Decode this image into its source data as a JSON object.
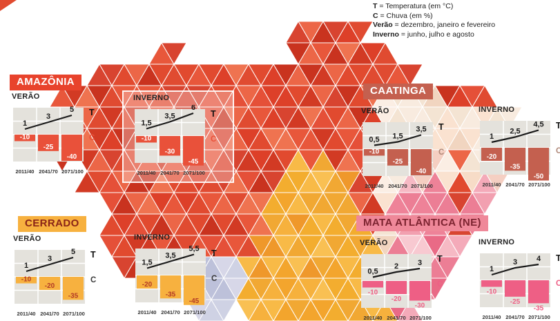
{
  "legend": {
    "items": [
      {
        "key": "T",
        "rest": " = Temperatura (em °C)"
      },
      {
        "key": "C",
        "rest": " = Chuva (em %)"
      },
      {
        "key": "Verão",
        "rest": " = dezembro, janeiro e fevereiro"
      },
      {
        "key": "Inverno",
        "rest": " = junho, julho e agosto"
      }
    ]
  },
  "x_labels": [
    "2011/40",
    "2041/70",
    "2071/100"
  ],
  "axis": {
    "t_label": "T",
    "c_label": "C"
  },
  "regions": [
    {
      "id": "amazonia",
      "label": "AMAZÔNIA",
      "label_bg": "#e8432c",
      "label_color": "#ffffff",
      "bar_color": "#e9513a",
      "bar_label_color": "#ffffff",
      "bar_label_placement": "inside",
      "c_color": "#e9513a",
      "charts": [
        {
          "season": "VERÃO",
          "t_display": [
            "1",
            "3",
            "5"
          ],
          "t_values": [
            1,
            3,
            5
          ],
          "c_display": [
            "-10",
            "-25",
            "-40"
          ],
          "c_values": [
            -10,
            -25,
            -40
          ],
          "highlight": false
        },
        {
          "season": "INVERNO",
          "t_display": [
            "1,5",
            "3,5",
            "6"
          ],
          "t_values": [
            1.5,
            3.5,
            6
          ],
          "c_display": [
            "-10",
            "-30",
            "-45"
          ],
          "c_values": [
            -10,
            -30,
            -45
          ],
          "highlight": true
        }
      ]
    },
    {
      "id": "caatinga",
      "label": "CAATINGA",
      "label_bg": "#c4604f",
      "label_color": "#ffffff",
      "bar_color": "#c4604f",
      "bar_label_color": "#ffffff",
      "bar_label_placement": "inside",
      "c_color": "#b08878",
      "charts": [
        {
          "season": "VERÃO",
          "t_display": [
            "0,5",
            "1,5",
            "3,5"
          ],
          "t_values": [
            0.5,
            1.5,
            3.5
          ],
          "c_display": [
            "-10",
            "-25",
            "-40"
          ],
          "c_values": [
            -10,
            -25,
            -40
          ],
          "highlight": false
        },
        {
          "season": "INVERNO",
          "t_display": [
            "1",
            "2,5",
            "4,5"
          ],
          "t_values": [
            1,
            2.5,
            4.5
          ],
          "c_display": [
            "-20",
            "-35",
            "-50"
          ],
          "c_values": [
            -20,
            -35,
            -50
          ],
          "highlight": false
        }
      ]
    },
    {
      "id": "cerrado",
      "label": "CERRADO",
      "label_bg": "#f7b13f",
      "label_color": "#8a2417",
      "bar_color": "#f7b13f",
      "bar_label_color": "#b23a26",
      "bar_label_placement": "inside",
      "c_color": "#3a3a3a",
      "charts": [
        {
          "season": "VERÃO",
          "t_display": [
            "1",
            "3",
            "5"
          ],
          "t_values": [
            1,
            3,
            5
          ],
          "c_display": [
            "-10",
            "-20",
            "-35"
          ],
          "c_values": [
            -10,
            -20,
            -35
          ],
          "highlight": false
        },
        {
          "season": "INVERNO",
          "t_display": [
            "1,5",
            "3,5",
            "5,5"
          ],
          "t_values": [
            1.5,
            3.5,
            5.5
          ],
          "c_display": [
            "-20",
            "-35",
            "-45"
          ],
          "c_values": [
            -20,
            -35,
            -45
          ],
          "highlight": false
        }
      ]
    },
    {
      "id": "mata-atlantica-ne",
      "label": "MATA ATLÂNTICA (NE)",
      "label_bg": "#ef8899",
      "label_color": "#7c2330",
      "bar_color": "#ee5f85",
      "bar_label_color": "#ee5f85",
      "bar_label_placement": "below",
      "c_color": "#ee5f85",
      "charts": [
        {
          "season": "VERÃO",
          "t_display": [
            "0,5",
            "2",
            "3"
          ],
          "t_values": [
            0.5,
            2,
            3
          ],
          "c_display": [
            "-10",
            "-20",
            "-30"
          ],
          "c_values": [
            -10,
            -20,
            -30
          ],
          "highlight": false
        },
        {
          "season": "INVERNO",
          "t_display": [
            "1",
            "3",
            "4"
          ],
          "t_values": [
            1,
            3,
            4
          ],
          "c_display": [
            "-10",
            "-25",
            "-35"
          ],
          "c_values": [
            -10,
            -25,
            -35
          ],
          "highlight": false
        }
      ]
    }
  ],
  "chart_data": [
    {
      "region": "Amazônia",
      "season": "Verão",
      "type": "bar",
      "categories": [
        "2011/40",
        "2041/70",
        "2071/100"
      ],
      "series": [
        {
          "name": "T (°C)",
          "type": "line",
          "values": [
            1,
            3,
            5
          ]
        },
        {
          "name": "C (%)",
          "type": "bar",
          "values": [
            -10,
            -25,
            -40
          ]
        }
      ]
    },
    {
      "region": "Amazônia",
      "season": "Inverno",
      "type": "bar",
      "categories": [
        "2011/40",
        "2041/70",
        "2071/100"
      ],
      "series": [
        {
          "name": "T (°C)",
          "type": "line",
          "values": [
            1.5,
            3.5,
            6
          ]
        },
        {
          "name": "C (%)",
          "type": "bar",
          "values": [
            -10,
            -30,
            -45
          ]
        }
      ]
    },
    {
      "region": "Caatinga",
      "season": "Verão",
      "type": "bar",
      "categories": [
        "2011/40",
        "2041/70",
        "2071/100"
      ],
      "series": [
        {
          "name": "T (°C)",
          "type": "line",
          "values": [
            0.5,
            1.5,
            3.5
          ]
        },
        {
          "name": "C (%)",
          "type": "bar",
          "values": [
            -10,
            -25,
            -40
          ]
        }
      ]
    },
    {
      "region": "Caatinga",
      "season": "Inverno",
      "type": "bar",
      "categories": [
        "2011/40",
        "2041/70",
        "2071/100"
      ],
      "series": [
        {
          "name": "T (°C)",
          "type": "line",
          "values": [
            1,
            2.5,
            4.5
          ]
        },
        {
          "name": "C (%)",
          "type": "bar",
          "values": [
            -20,
            -35,
            -50
          ]
        }
      ]
    },
    {
      "region": "Cerrado",
      "season": "Verão",
      "type": "bar",
      "categories": [
        "2011/40",
        "2041/70",
        "2071/100"
      ],
      "series": [
        {
          "name": "T (°C)",
          "type": "line",
          "values": [
            1,
            3,
            5
          ]
        },
        {
          "name": "C (%)",
          "type": "bar",
          "values": [
            -10,
            -20,
            -35
          ]
        }
      ]
    },
    {
      "region": "Cerrado",
      "season": "Inverno",
      "type": "bar",
      "categories": [
        "2011/40",
        "2041/70",
        "2071/100"
      ],
      "series": [
        {
          "name": "T (°C)",
          "type": "line",
          "values": [
            1.5,
            3.5,
            5.5
          ]
        },
        {
          "name": "C (%)",
          "type": "bar",
          "values": [
            -20,
            -35,
            -45
          ]
        }
      ]
    },
    {
      "region": "Mata Atlântica (NE)",
      "season": "Verão",
      "type": "bar",
      "categories": [
        "2011/40",
        "2041/70",
        "2071/100"
      ],
      "series": [
        {
          "name": "T (°C)",
          "type": "line",
          "values": [
            0.5,
            2,
            3
          ]
        },
        {
          "name": "C (%)",
          "type": "bar",
          "values": [
            -10,
            -20,
            -30
          ]
        }
      ]
    },
    {
      "region": "Mata Atlântica (NE)",
      "season": "Inverno",
      "type": "bar",
      "categories": [
        "2011/40",
        "2041/70",
        "2071/100"
      ],
      "series": [
        {
          "name": "T (°C)",
          "type": "line",
          "values": [
            1,
            3,
            4
          ]
        },
        {
          "name": "C (%)",
          "type": "bar",
          "values": [
            -10,
            -25,
            -35
          ]
        }
      ]
    }
  ],
  "mosaic_colors": {
    "red": [
      "#e14a2f",
      "#dd4029",
      "#e8573b",
      "#d23a24",
      "#ec6647",
      "#e04b31",
      "#d84430",
      "#ef7350",
      "#c9331f",
      "#e55038"
    ],
    "yellow": [
      "#f6b13d",
      "#f3a52d",
      "#f9c053",
      "#f1a833",
      "#f8ba47",
      "#f3ad2f",
      "#ef982b"
    ],
    "cream": [
      "#f7dcc7",
      "#f4e4d3",
      "#fae2d0",
      "#f1d5c0",
      "#f8ebdf",
      "#f5cfc2",
      "#fbeee4"
    ],
    "pink": [
      "#f2a0b0",
      "#ee8298",
      "#f6b9c4",
      "#ec7e95",
      "#f4aab9",
      "#e96a86",
      "#f8c9d1"
    ],
    "lavender": [
      "#c9cadf",
      "#bdc1da",
      "#d7d7e8",
      "#cfd2e4"
    ]
  }
}
